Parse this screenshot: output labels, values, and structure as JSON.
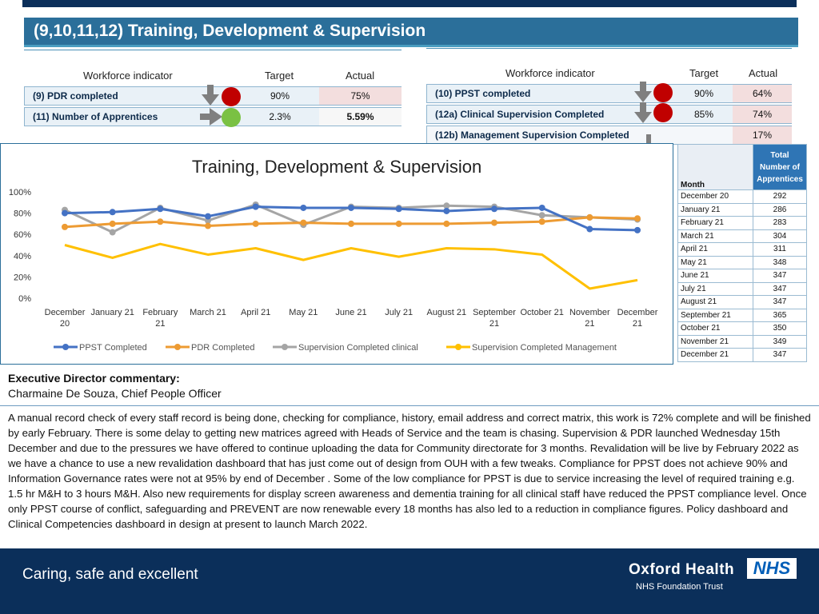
{
  "title": "(9,10,11,12) Training, Development & Supervision",
  "left_table": {
    "headers": {
      "indicator": "Workforce indicator",
      "target": "Target",
      "actual": "Actual"
    },
    "rows": [
      {
        "label": "(9) PDR completed",
        "target": "90%",
        "actual": "75%",
        "status": "red",
        "trend": "down"
      },
      {
        "label": "(11) Number of Apprentices",
        "target": "2.3%",
        "actual": "5.59%",
        "status": "green",
        "trend": "right"
      }
    ]
  },
  "right_table": {
    "headers": {
      "indicator": "Workforce indicator",
      "target": "Target",
      "actual": "Actual"
    },
    "rows": [
      {
        "label": "(10) PPST completed",
        "target": "90%",
        "actual": "64%",
        "status": "red",
        "trend": "down"
      },
      {
        "label": "(12a) Clinical Supervision Completed",
        "target": "85%",
        "actual": "74%",
        "status": "red",
        "trend": "down"
      },
      {
        "label": "(12b) Management Supervision Completed",
        "target": "",
        "actual": "17%",
        "status": "",
        "trend": "down"
      }
    ]
  },
  "chart_data": {
    "type": "line",
    "title": "Training, Development & Supervision",
    "categories": [
      "December 20",
      "January 21",
      "February 21",
      "March 21",
      "April 21",
      "May 21",
      "June 21",
      "July 21",
      "August 21",
      "September 21",
      "October 21",
      "November 21",
      "December 21"
    ],
    "category_lines": [
      [
        "December",
        "20"
      ],
      [
        "January 21",
        ""
      ],
      [
        "February",
        "21"
      ],
      [
        "March 21",
        ""
      ],
      [
        "April 21",
        ""
      ],
      [
        "May 21",
        ""
      ],
      [
        "June 21",
        ""
      ],
      [
        "July 21",
        ""
      ],
      [
        "August 21",
        ""
      ],
      [
        "September",
        "21"
      ],
      [
        "October 21",
        ""
      ],
      [
        "November",
        "21"
      ],
      [
        "December",
        "21"
      ]
    ],
    "ylim": [
      0,
      100
    ],
    "yticks": [
      "0%",
      "20%",
      "40%",
      "60%",
      "80%",
      "100%"
    ],
    "series": [
      {
        "name": "PPST Completed",
        "color": "#4472c4",
        "values": [
          80,
          81,
          84,
          77,
          86,
          85,
          85,
          84,
          82,
          84,
          85,
          65,
          64
        ]
      },
      {
        "name": "PDR Completed",
        "color": "#ed9b33",
        "values": [
          67,
          70,
          72,
          68,
          70,
          71,
          70,
          70,
          70,
          71,
          72,
          76,
          75
        ]
      },
      {
        "name": "Supervision Completed clinical",
        "color": "#a5a5a5",
        "values": [
          83,
          62,
          85,
          73,
          88,
          69,
          86,
          85,
          87,
          86,
          78,
          76,
          74
        ]
      },
      {
        "name": "Supervision Completed Management",
        "color": "#ffc000",
        "values": [
          50,
          38,
          51,
          41,
          47,
          36,
          47,
          39,
          47,
          46,
          41,
          9,
          17
        ]
      }
    ],
    "legend": "bottom"
  },
  "apprentices": {
    "header_month": "Month",
    "header_total": "Total Number of Apprentices",
    "rows": [
      {
        "month": "December 20",
        "value": "292"
      },
      {
        "month": "January 21",
        "value": "286"
      },
      {
        "month": "February 21",
        "value": "283"
      },
      {
        "month": "March 21",
        "value": "304"
      },
      {
        "month": "April 21",
        "value": "311"
      },
      {
        "month": "May 21",
        "value": "348"
      },
      {
        "month": "June 21",
        "value": "347"
      },
      {
        "month": "July 21",
        "value": "347"
      },
      {
        "month": "August 21",
        "value": "347"
      },
      {
        "month": "September 21",
        "value": "365"
      },
      {
        "month": "October 21",
        "value": "350"
      },
      {
        "month": "November 21",
        "value": "349"
      },
      {
        "month": "December 21",
        "value": "347"
      }
    ]
  },
  "commentary": {
    "heading": "Executive Director commentary:",
    "author": "Charmaine De Souza, Chief People Officer",
    "text": "A manual record check of every staff record is being done, checking for compliance, history, email address and correct matrix, this work is 72% complete and will be finished by early February.  There is some delay to getting new matrices agreed with Heads of Service and the team is chasing. Supervision & PDR launched Wednesday 15th December  and due to the pressures we have offered to continue uploading the data for Community directorate for 3 months.  Revalidation will be live by February 2022 as we have a chance to use a new revalidation dashboard that has just come out of design from OUH with a few tweaks.  Compliance for PPST does not achieve 90% and Information Governance rates were not at 95% by end of December . Some of the low compliance for PPST is due to service increasing the level of required training e.g. 1.5 hr M&H to 3 hours M&H.  Also new requirements for display screen awareness and dementia training for all clinical staff have reduced the PPST compliance level.   Once only  PPST course of conflict, safeguarding and PREVENT are now renewable every 18 months has also led to a reduction in compliance figures. Policy dashboard and Clinical Competencies dashboard in design at present to launch March 2022."
  },
  "footer": {
    "tagline": "Caring, safe and excellent",
    "org": "Oxford Health",
    "trust": "NHS Foundation Trust",
    "nhs": "NHS"
  }
}
